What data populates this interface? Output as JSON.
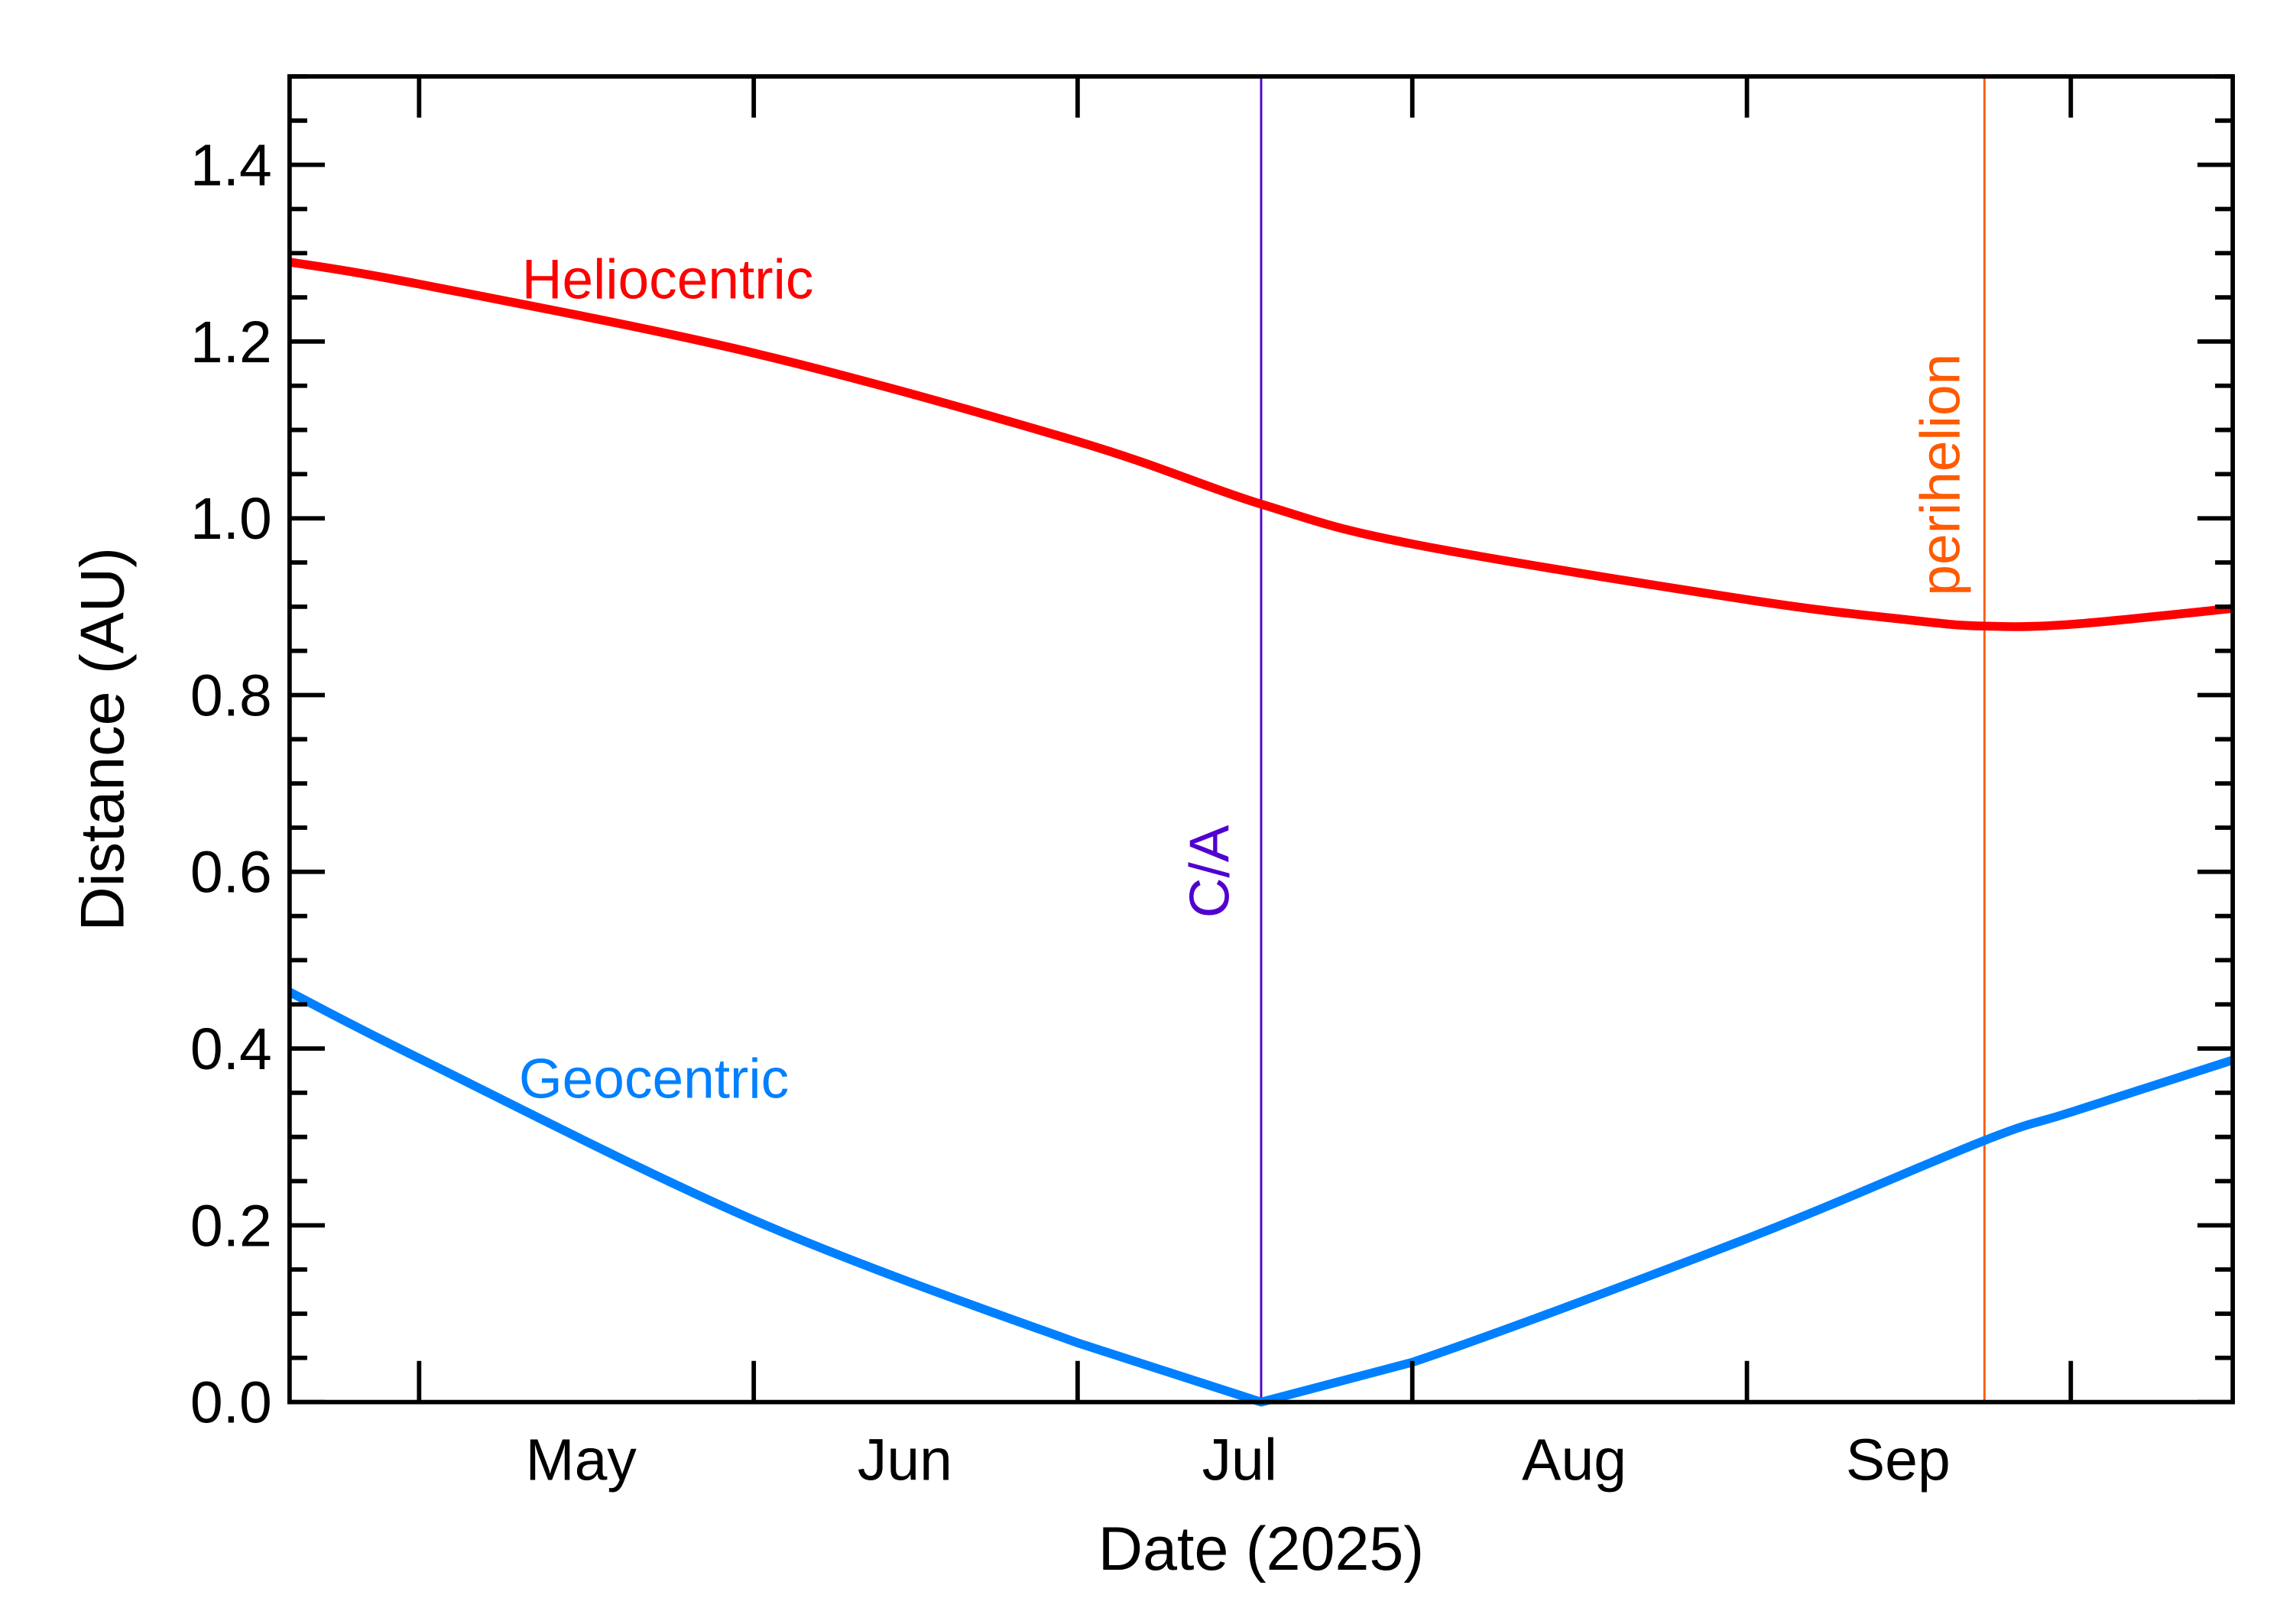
{
  "chart_data": {
    "type": "line",
    "title": "",
    "xlabel": "Date (2025)",
    "ylabel": "Distance (AU)",
    "xlim": [
      "2025-04-19",
      "2025-10-16"
    ],
    "ylim": [
      0.0,
      1.5
    ],
    "x_ticks": [
      {
        "date": "2025-05-01",
        "label": "May",
        "label_date": "2025-05-16"
      },
      {
        "date": "2025-06-01",
        "label": "Jun",
        "label_date": "2025-06-15"
      },
      {
        "date": "2025-07-01",
        "label": "Jul",
        "label_date": "2025-07-16"
      },
      {
        "date": "2025-08-01",
        "label": "Aug",
        "label_date": "2025-08-16"
      },
      {
        "date": "2025-09-01",
        "label": "Sep",
        "label_date": "2025-09-15"
      },
      {
        "date": "2025-10-01",
        "label": "",
        "label_date": ""
      }
    ],
    "y_ticks": [
      "0.0",
      "0.2",
      "0.4",
      "0.6",
      "0.8",
      "1.0",
      "1.2",
      "1.4"
    ],
    "grid": false,
    "series": [
      {
        "name": "Heliocentric",
        "color": "#ff0000",
        "x": [
          "2025-04-19",
          "2025-05-01",
          "2025-06-01",
          "2025-07-01",
          "2025-07-18",
          "2025-08-01",
          "2025-09-01",
          "2025-09-16",
          "2025-09-23",
          "2025-10-01",
          "2025-10-16"
        ],
        "y": [
          1.29,
          1.265,
          1.187,
          1.087,
          1.016,
          0.971,
          0.908,
          0.885,
          0.878,
          0.88,
          0.898
        ]
      },
      {
        "name": "Geocentric",
        "color": "#0080ff",
        "x": [
          "2025-04-19",
          "2025-05-01",
          "2025-06-01",
          "2025-07-01",
          "2025-07-18",
          "2025-08-01",
          "2025-09-01",
          "2025-09-23",
          "2025-10-01",
          "2025-10-16"
        ],
        "y": [
          0.464,
          0.389,
          0.206,
          0.067,
          0.0,
          0.045,
          0.185,
          0.296,
          0.328,
          0.387
        ]
      }
    ],
    "markers": [
      {
        "label": "C/A",
        "date": "2025-07-18",
        "color": "#5000d0"
      },
      {
        "label": "perihelion",
        "date": "2025-09-23",
        "color": "#ff5a00"
      }
    ]
  }
}
